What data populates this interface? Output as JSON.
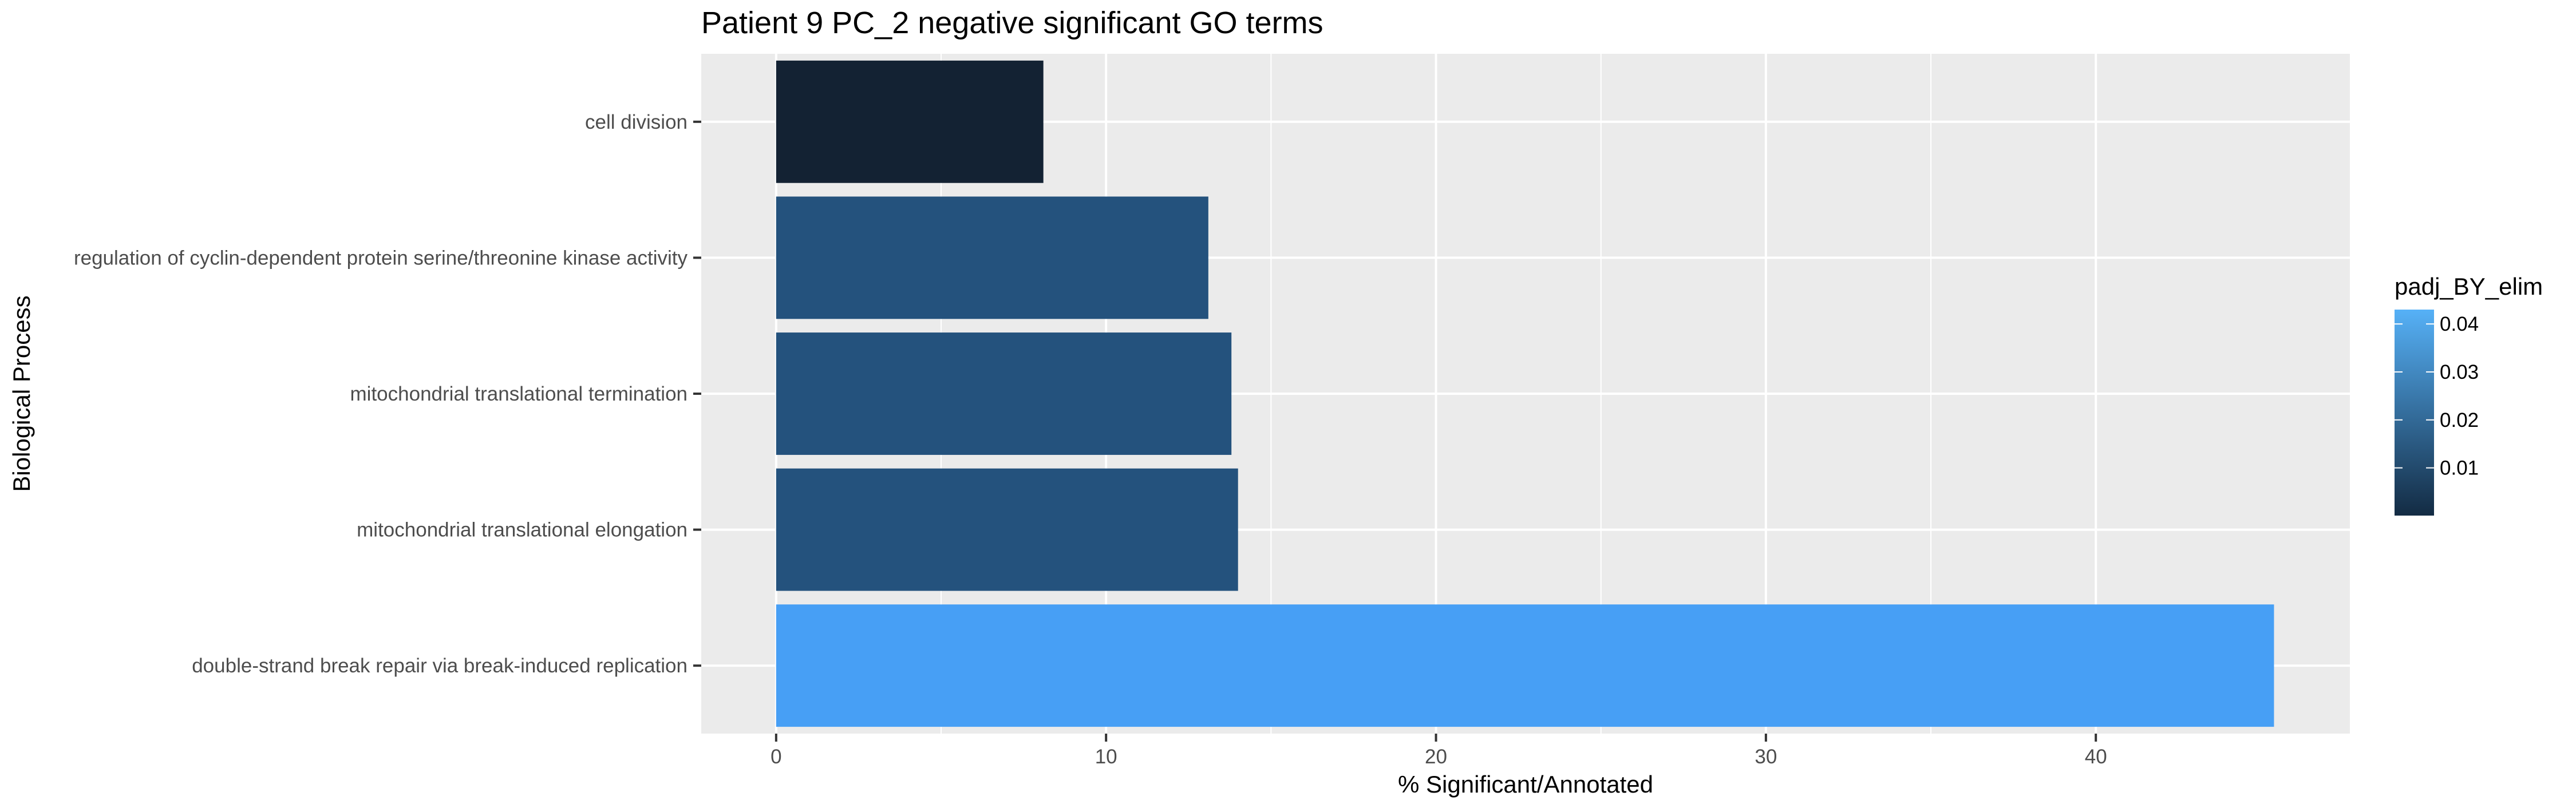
{
  "chart_data": {
    "type": "bar",
    "orientation": "horizontal",
    "title": "Patient 9 PC_2 negative significant GO terms",
    "xlabel": "% Significant/Annotated",
    "ylabel": "Biological Process",
    "xlim": [
      -2.27,
      47.7
    ],
    "xticks": [
      0,
      10,
      20,
      30,
      40
    ],
    "grid": true,
    "legend": {
      "title": "padj_BY_elim",
      "position": "right",
      "ticks": [
        0.01,
        0.02,
        0.03,
        0.04
      ],
      "range": [
        5e-05,
        0.043
      ],
      "colors": {
        "low": "#132B43",
        "high": "#56B1F7"
      }
    },
    "categories": [
      "cell division",
      "regulation of cyclin-dependent protein serine/threonine kinase activity",
      "mitochondrial translational termination",
      "mitochondrial translational elongation",
      "double-strand break repair via break-induced replication"
    ],
    "values": [
      8.1,
      13.1,
      13.8,
      14.0,
      45.4
    ],
    "padj": [
      0.0001,
      0.0207,
      0.0207,
      0.0207,
      0.042
    ],
    "colors": [
      "#132233",
      "#24527D",
      "#24527D",
      "#24527D",
      "#479FF5"
    ]
  }
}
